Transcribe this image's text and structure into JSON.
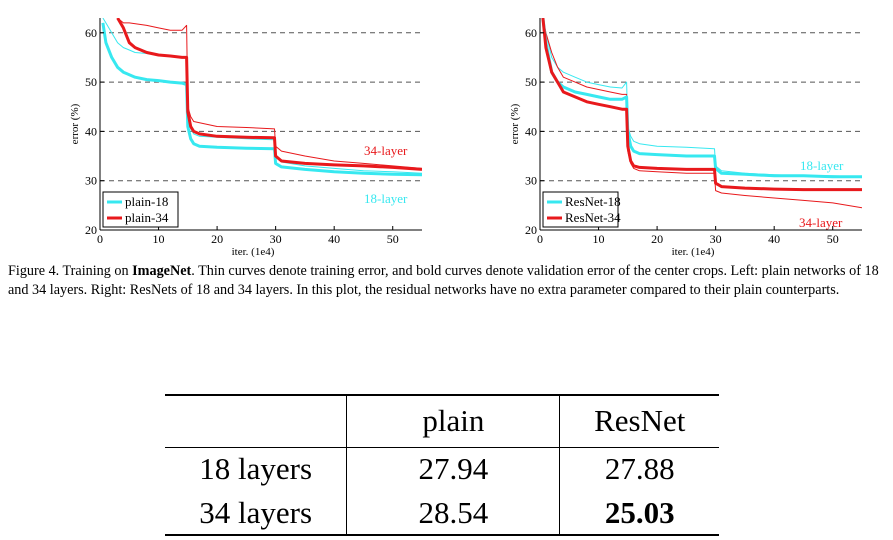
{
  "figure": {
    "caption_label": "Figure 4. Training on ",
    "caption_bold": "ImageNet",
    "caption_rest": ". Thin curves denote training error, and bold curves denote validation error of the center crops. Left: plain networks of 18 and 34 layers. Right: ResNets of 18 and 34 layers. In this plot, the residual networks have no extra parameter compared to their plain counterparts."
  },
  "colors": {
    "cyan": "#37e8f0",
    "red": "#e8191c",
    "grid": "#555555"
  },
  "chart_data": [
    {
      "type": "line",
      "panel": "left",
      "xlabel": "iter. (1e4)",
      "ylabel": "error (%)",
      "xlim": [
        0,
        55
      ],
      "ylim": [
        20,
        63
      ],
      "xticks": [
        0,
        10,
        20,
        30,
        40,
        50
      ],
      "yticks": [
        20,
        30,
        40,
        50,
        60
      ],
      "grid": "horizontal dashed at 30, 40, 50, 60",
      "legend_position": "bottom-left",
      "legend": [
        "plain-18",
        "plain-34"
      ],
      "annotations": [
        {
          "text": "34-layer",
          "color": "red"
        },
        {
          "text": "18-layer",
          "color": "cyan"
        }
      ],
      "series": [
        {
          "name": "plain-18",
          "color": "cyan",
          "style": "bold",
          "x": [
            0.5,
            1,
            2,
            3,
            4,
            5,
            6,
            8,
            10,
            12,
            14,
            14.8,
            15,
            15.5,
            16,
            17,
            20,
            25,
            29.8,
            30,
            31,
            35,
            40,
            45,
            50,
            55
          ],
          "y": [
            62,
            58,
            55,
            53,
            52,
            51.5,
            51,
            50.5,
            50.3,
            50,
            49.8,
            49.5,
            41,
            38.5,
            37.5,
            37,
            36.8,
            36.6,
            36.5,
            33.5,
            32.8,
            32.3,
            31.8,
            31.5,
            31.3,
            31.2
          ]
        },
        {
          "name": "plain-18 train",
          "color": "cyan",
          "style": "thin",
          "x": [
            0.5,
            1,
            2,
            3,
            4,
            5,
            6,
            8,
            10,
            12,
            14,
            14.8,
            15,
            15.5,
            16,
            17,
            20,
            25,
            29.8,
            30,
            31,
            35,
            40,
            45,
            50,
            55
          ],
          "y": [
            63,
            62,
            60,
            58,
            57,
            56.5,
            56,
            55.8,
            55.5,
            55.3,
            55,
            55,
            42,
            40.5,
            39.5,
            39,
            38.8,
            38.5,
            38.3,
            35,
            33.8,
            33,
            32.5,
            32,
            31.8,
            31.5
          ]
        },
        {
          "name": "plain-34",
          "color": "red",
          "style": "bold",
          "x": [
            3,
            4,
            5,
            6,
            8,
            10,
            12,
            14,
            14.8,
            15,
            15.5,
            16,
            17,
            20,
            25,
            29.8,
            30,
            31,
            35,
            40,
            45,
            50,
            55
          ],
          "y": [
            63,
            61,
            58,
            57,
            56,
            55.5,
            55.3,
            55,
            55,
            44,
            41,
            40,
            39.5,
            39,
            38.8,
            38.7,
            35,
            34,
            33.5,
            33.2,
            33,
            32.7,
            32.3
          ]
        },
        {
          "name": "plain-34 train",
          "color": "red",
          "style": "thin",
          "x": [
            3,
            4,
            5,
            8,
            10,
            12,
            14,
            14.8,
            15,
            15.5,
            16,
            18,
            20,
            25,
            29.8,
            30,
            31,
            35,
            40,
            45,
            50,
            55
          ],
          "y": [
            63,
            62,
            62,
            61.5,
            61,
            60.5,
            60.5,
            61.5,
            45,
            43,
            42,
            41.5,
            41,
            40.8,
            40.5,
            37,
            36,
            35,
            34,
            33.5,
            33,
            32.5
          ]
        }
      ]
    },
    {
      "type": "line",
      "panel": "right",
      "xlabel": "iter. (1e4)",
      "ylabel": "error (%)",
      "xlim": [
        0,
        55
      ],
      "ylim": [
        20,
        63
      ],
      "xticks": [
        0,
        10,
        20,
        30,
        40,
        50
      ],
      "yticks": [
        20,
        30,
        40,
        50,
        60
      ],
      "grid": "horizontal dashed at 30, 40, 50, 60",
      "legend_position": "bottom-left",
      "legend": [
        "ResNet-18",
        "ResNet-34"
      ],
      "annotations": [
        {
          "text": "18-layer",
          "color": "cyan"
        },
        {
          "text": "34-layer",
          "color": "red"
        }
      ],
      "series": [
        {
          "name": "ResNet-18",
          "color": "cyan",
          "style": "bold",
          "x": [
            0.5,
            1,
            2,
            3,
            4,
            6,
            8,
            10,
            12,
            14,
            14.8,
            15,
            15.5,
            16,
            17,
            20,
            25,
            29.8,
            30,
            31,
            35,
            40,
            45,
            50,
            55
          ],
          "y": [
            63,
            58,
            52,
            50,
            49,
            48,
            47.5,
            47,
            46.5,
            46.5,
            47,
            40,
            37,
            36,
            35.5,
            35.3,
            35,
            35,
            32.5,
            31.5,
            31.3,
            31,
            31,
            30.8,
            30.8
          ]
        },
        {
          "name": "ResNet-18 train",
          "color": "cyan",
          "style": "thin",
          "x": [
            0.5,
            1,
            2,
            3,
            4,
            6,
            8,
            10,
            12,
            14,
            14.8,
            15,
            15.5,
            16,
            17,
            20,
            25,
            29.8,
            30,
            31,
            35,
            40,
            45,
            50,
            55
          ],
          "y": [
            63,
            60,
            55,
            53,
            52,
            51,
            50,
            49.5,
            49,
            48.8,
            50,
            41,
            39,
            38,
            37.5,
            37,
            36.8,
            36.5,
            33,
            32,
            31.5,
            31.2,
            31,
            31,
            30.8
          ]
        },
        {
          "name": "ResNet-34",
          "color": "red",
          "style": "bold",
          "x": [
            0.5,
            1,
            2,
            3,
            4,
            6,
            8,
            10,
            12,
            14,
            14.8,
            15,
            15.5,
            16,
            17,
            20,
            25,
            29.8,
            30,
            31,
            35,
            40,
            45,
            50,
            55
          ],
          "y": [
            63,
            57,
            52,
            50,
            48,
            47,
            46,
            45.5,
            45,
            44.5,
            44.5,
            37,
            34,
            33,
            32.7,
            32.5,
            32.3,
            32.3,
            29.5,
            28.8,
            28.5,
            28.3,
            28.2,
            28.2,
            28.2
          ]
        },
        {
          "name": "ResNet-34 train",
          "color": "red",
          "style": "thin",
          "x": [
            0.5,
            1,
            2,
            3,
            4,
            6,
            8,
            10,
            12,
            14,
            14.8,
            15,
            15.5,
            16,
            17,
            20,
            25,
            29.8,
            30,
            31,
            35,
            40,
            45,
            50,
            55
          ],
          "y": [
            63,
            60,
            56,
            53,
            51,
            50,
            49,
            48.5,
            48,
            47.5,
            47.5,
            36,
            33.5,
            32.5,
            32,
            31.8,
            31.5,
            31.5,
            28,
            27.5,
            27,
            26.5,
            26,
            25.5,
            24.5
          ]
        }
      ]
    }
  ],
  "table": {
    "headers": [
      "",
      "plain",
      "ResNet"
    ],
    "rows": [
      [
        "18 layers",
        "27.94",
        "27.88"
      ],
      [
        "34 layers",
        "28.54",
        "25.03"
      ]
    ]
  }
}
